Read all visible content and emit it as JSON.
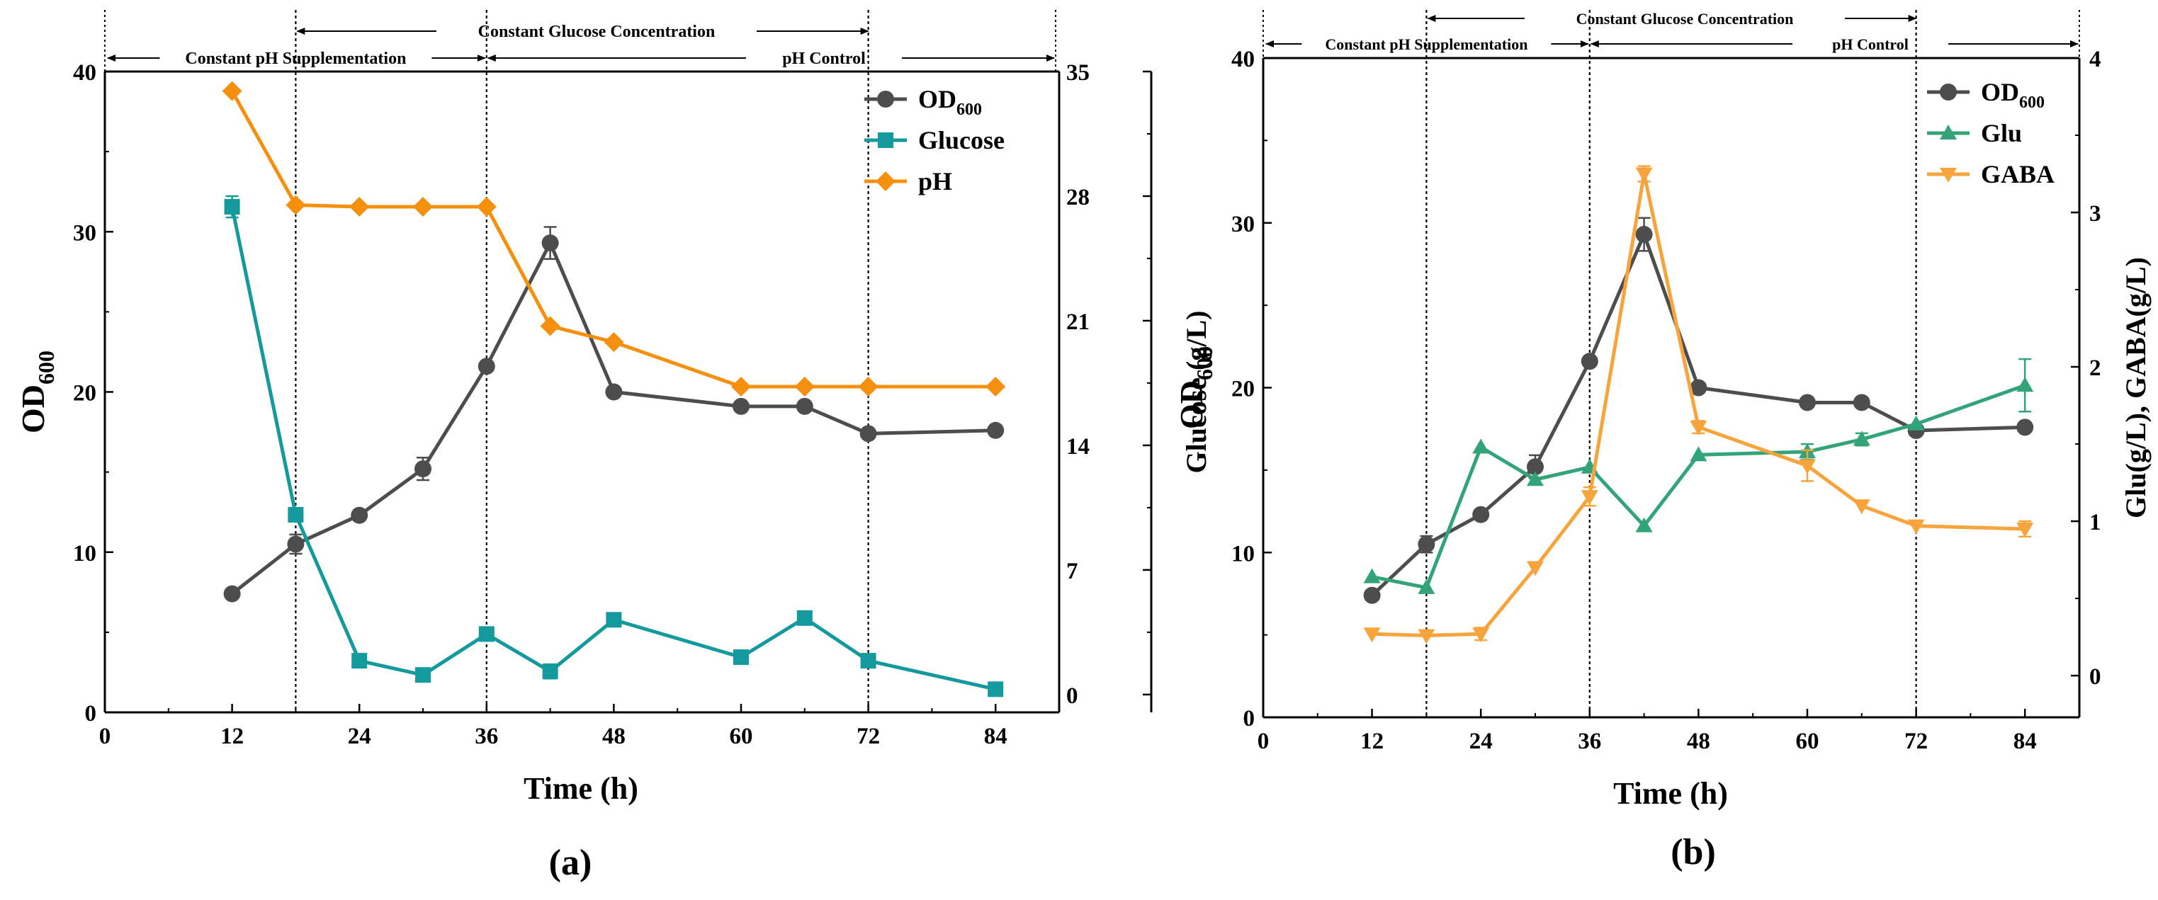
{
  "chart_data": [
    {
      "type": "line",
      "panel_label": "(a)",
      "xlabel": "Time (h)",
      "ylabel": "OD",
      "ylabel_sub": "600",
      "y2label": "Glucose (g/L)",
      "xlim": [
        0,
        90
      ],
      "ylim": [
        0,
        40
      ],
      "y2lim": [
        -1,
        35
      ],
      "xticks": [
        "0",
        "12",
        "24",
        "36",
        "48",
        "60",
        "72",
        "84"
      ],
      "xtick_values": [
        0,
        12,
        24,
        36,
        48,
        60,
        72,
        84
      ],
      "yticks": [
        "0",
        "10",
        "20",
        "30",
        "40"
      ],
      "ytick_values": [
        0,
        10,
        20,
        30,
        40
      ],
      "y2ticks": [
        "0",
        "7",
        "14",
        "21",
        "28",
        "35"
      ],
      "y2tick_values": [
        0,
        7,
        14,
        21,
        28,
        35
      ],
      "phases": {
        "constant_ph": "Constant pH Supplementation",
        "constant_glucose": "Constant Glucose Concentration",
        "ph_control": "pH Control"
      },
      "dividers": [
        18,
        36,
        72
      ],
      "series": [
        {
          "name": "OD",
          "name_sub": "600",
          "axis": "left",
          "color": "#4d4d4d",
          "marker": "circle",
          "x": [
            12,
            18,
            24,
            30,
            36,
            42,
            48,
            60,
            66,
            72,
            84
          ],
          "values": [
            7.4,
            10.5,
            12.3,
            15.2,
            21.6,
            29.3,
            20.0,
            19.1,
            19.1,
            17.4,
            17.6
          ],
          "err": [
            0,
            0.6,
            0,
            0.7,
            0,
            1.0,
            0,
            0,
            0,
            0,
            0
          ]
        },
        {
          "name": "Glucose",
          "axis": "right",
          "color": "#14999d",
          "marker": "square",
          "x": [
            12,
            18,
            24,
            30,
            36,
            42,
            48,
            60,
            66,
            72,
            84
          ],
          "values": [
            27.4,
            10.1,
            1.9,
            1.1,
            3.4,
            1.3,
            4.2,
            2.1,
            4.3,
            1.9,
            0.3
          ],
          "err": [
            0.6,
            0,
            0,
            0,
            0,
            0.4,
            0,
            0,
            0,
            0,
            0
          ]
        },
        {
          "name": "pH",
          "axis": "right",
          "color": "#f5900f",
          "marker": "diamond",
          "x": [
            12,
            18,
            24,
            30,
            36,
            42,
            48,
            60,
            66,
            72,
            84
          ],
          "values": [
            33.9,
            27.5,
            27.4,
            27.4,
            27.4,
            20.7,
            19.8,
            17.3,
            17.3,
            17.3,
            17.3
          ],
          "err": [
            0,
            0,
            0,
            0,
            0,
            0,
            0,
            0,
            0,
            0,
            0
          ]
        }
      ]
    },
    {
      "type": "line",
      "panel_label": "(b)",
      "xlabel": "Time (h)",
      "ylabel": "OD",
      "ylabel_sub": "600",
      "y2label": "Glu(g/L), GABA(g/L)",
      "xlim": [
        0,
        90
      ],
      "ylim": [
        0,
        40
      ],
      "y2lim": [
        -0.27,
        4
      ],
      "xticks": [
        "0",
        "12",
        "24",
        "36",
        "48",
        "60",
        "72",
        "84"
      ],
      "xtick_values": [
        0,
        12,
        24,
        36,
        48,
        60,
        72,
        84
      ],
      "yticks": [
        "0",
        "10",
        "20",
        "30",
        "40"
      ],
      "ytick_values": [
        0,
        10,
        20,
        30,
        40
      ],
      "y2ticks": [
        "0",
        "1",
        "2",
        "3",
        "4"
      ],
      "y2tick_values": [
        0,
        1,
        2,
        3,
        4
      ],
      "phases": {
        "constant_ph": "Constant pH Supplementation",
        "constant_glucose": "Constant Glucose Concentration",
        "ph_control": "pH Control"
      },
      "dividers": [
        18,
        36,
        72
      ],
      "series": [
        {
          "name": "OD",
          "name_sub": "600",
          "axis": "left",
          "color": "#4d4d4d",
          "marker": "circle",
          "x": [
            12,
            18,
            24,
            30,
            36,
            42,
            48,
            60,
            66,
            72,
            84
          ],
          "values": [
            7.4,
            10.5,
            12.3,
            15.2,
            21.6,
            29.3,
            20.0,
            19.1,
            19.1,
            17.4,
            17.6
          ],
          "err": [
            0,
            0.5,
            0,
            0.7,
            0,
            1.0,
            0,
            0,
            0,
            0,
            0
          ]
        },
        {
          "name": "Glu",
          "axis": "right",
          "color": "#33a37a",
          "marker": "triangle-up",
          "x": [
            12,
            18,
            24,
            30,
            36,
            42,
            48,
            60,
            66,
            72,
            84
          ],
          "values": [
            0.64,
            0.57,
            1.48,
            1.27,
            1.35,
            0.97,
            1.43,
            1.45,
            1.53,
            1.63,
            1.88
          ],
          "err": [
            0,
            0,
            0,
            0,
            0,
            0,
            0,
            0.05,
            0.04,
            0,
            0.17
          ]
        },
        {
          "name": "GABA",
          "axis": "right",
          "color": "#f8a43c",
          "marker": "triangle-down",
          "x": [
            12,
            18,
            24,
            30,
            36,
            42,
            48,
            60,
            66,
            72,
            84
          ],
          "values": [
            0.27,
            0.26,
            0.27,
            0.7,
            1.16,
            3.25,
            1.61,
            1.36,
            1.1,
            0.97,
            0.95
          ],
          "err": [
            0,
            0,
            0.04,
            0,
            0.06,
            0.05,
            0.04,
            0.1,
            0,
            0,
            0.05
          ]
        }
      ]
    }
  ]
}
